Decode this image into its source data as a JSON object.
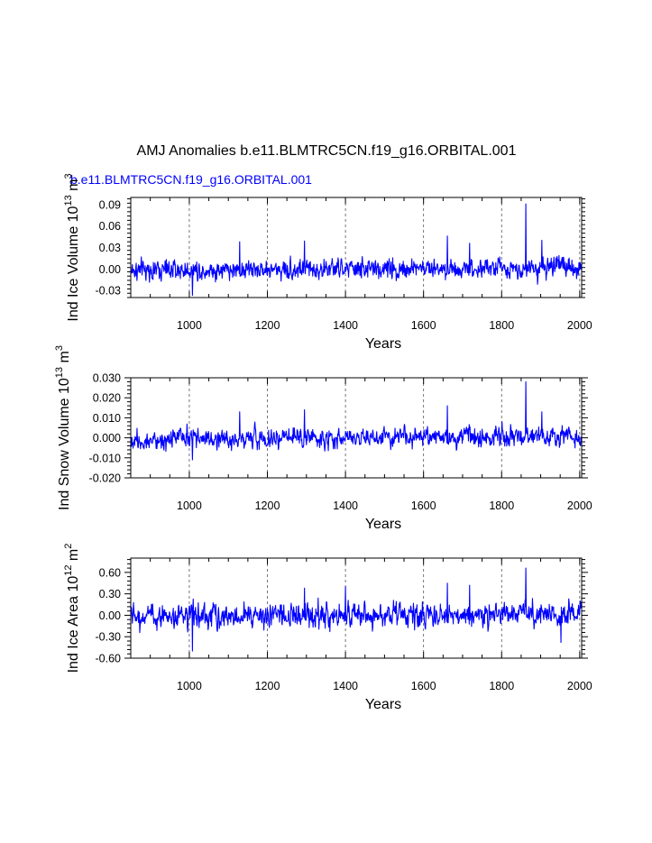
{
  "title": "AMJ Anomalies b.e11.BLMTRC5CN.f19_g16.ORBITAL.001",
  "subtitle": "b.e11.BLMTRC5CN.f19_g16.ORBITAL.001",
  "colors": {
    "line": "#0000ff",
    "subtitle": "#0000ff",
    "axes": "#000000",
    "grid": "#555555"
  },
  "chart_data": [
    {
      "type": "line",
      "ylabel": "Ind Ice Volume 10",
      "ylabel_exp": "13",
      "ylabel_unit": " m",
      "ylabel_unit_exp": "3",
      "xlabel": "Years",
      "xlim": [
        850,
        2005
      ],
      "ylim": [
        -0.04,
        0.1
      ],
      "xticks": [
        1000,
        1200,
        1400,
        1600,
        1800,
        2000
      ],
      "xtick_labels": [
        "1000",
        "1200",
        "1400",
        "1600",
        "1800",
        "2000"
      ],
      "yticks": [
        -0.03,
        0.0,
        0.03,
        0.06,
        0.09
      ],
      "ytick_labels": [
        "-0.03",
        "0.00",
        "0.03",
        "0.06",
        "0.09"
      ],
      "grid_x": [
        1000,
        1200,
        1400,
        1600,
        1800,
        2000
      ],
      "amplitude": 0.011,
      "trend": 3.5e-06,
      "spikes": [
        [
          1862,
          0.091
        ],
        [
          1661,
          0.046
        ],
        [
          1008,
          -0.037
        ],
        [
          1718,
          0.036
        ],
        [
          1903,
          0.04
        ],
        [
          1129,
          0.038
        ],
        [
          1295,
          0.039
        ]
      ]
    },
    {
      "type": "line",
      "ylabel": "Ind Snow Volume 10",
      "ylabel_exp": "13",
      "ylabel_unit": " m",
      "ylabel_unit_exp": "3",
      "xlabel": "Years",
      "xlim": [
        850,
        2005
      ],
      "ylim": [
        -0.02,
        0.03
      ],
      "xticks": [
        1000,
        1200,
        1400,
        1600,
        1800,
        2000
      ],
      "xtick_labels": [
        "1000",
        "1200",
        "1400",
        "1600",
        "1800",
        "2000"
      ],
      "yticks": [
        -0.02,
        -0.01,
        0.0,
        0.01,
        0.02,
        0.03
      ],
      "ytick_labels": [
        "-0.020",
        "-0.010",
        "0.000",
        "0.010",
        "0.020",
        "0.030"
      ],
      "grid_x": [
        1000,
        1200,
        1400,
        1600,
        1800,
        2000
      ],
      "amplitude": 0.0038,
      "trend": 1.2e-06,
      "spikes": [
        [
          1862,
          0.028
        ],
        [
          1661,
          0.016
        ],
        [
          1008,
          -0.011
        ],
        [
          1129,
          0.013
        ],
        [
          1295,
          0.014
        ],
        [
          1903,
          0.013
        ]
      ]
    },
    {
      "type": "line",
      "ylabel": "Ind Ice Area 10",
      "ylabel_exp": "12",
      "ylabel_unit": " m",
      "ylabel_unit_exp": "2",
      "xlabel": "Years",
      "xlim": [
        850,
        2005
      ],
      "ylim": [
        -0.6,
        0.8
      ],
      "xticks": [
        1000,
        1200,
        1400,
        1600,
        1800,
        2000
      ],
      "xtick_labels": [
        "1000",
        "1200",
        "1400",
        "1600",
        "1800",
        "2000"
      ],
      "yticks": [
        -0.6,
        -0.3,
        0.0,
        0.3,
        0.6
      ],
      "ytick_labels": [
        "-0.60",
        "-0.30",
        "0.00",
        "0.30",
        "0.60"
      ],
      "grid_x": [
        1000,
        1200,
        1400,
        1600,
        1800,
        2000
      ],
      "amplitude": 0.13,
      "trend": 3e-05,
      "spikes": [
        [
          1862,
          0.66
        ],
        [
          1008,
          -0.5
        ],
        [
          1661,
          0.45
        ],
        [
          1718,
          0.42
        ],
        [
          1400,
          0.4
        ],
        [
          1295,
          0.38
        ],
        [
          1952,
          -0.38
        ]
      ]
    }
  ]
}
